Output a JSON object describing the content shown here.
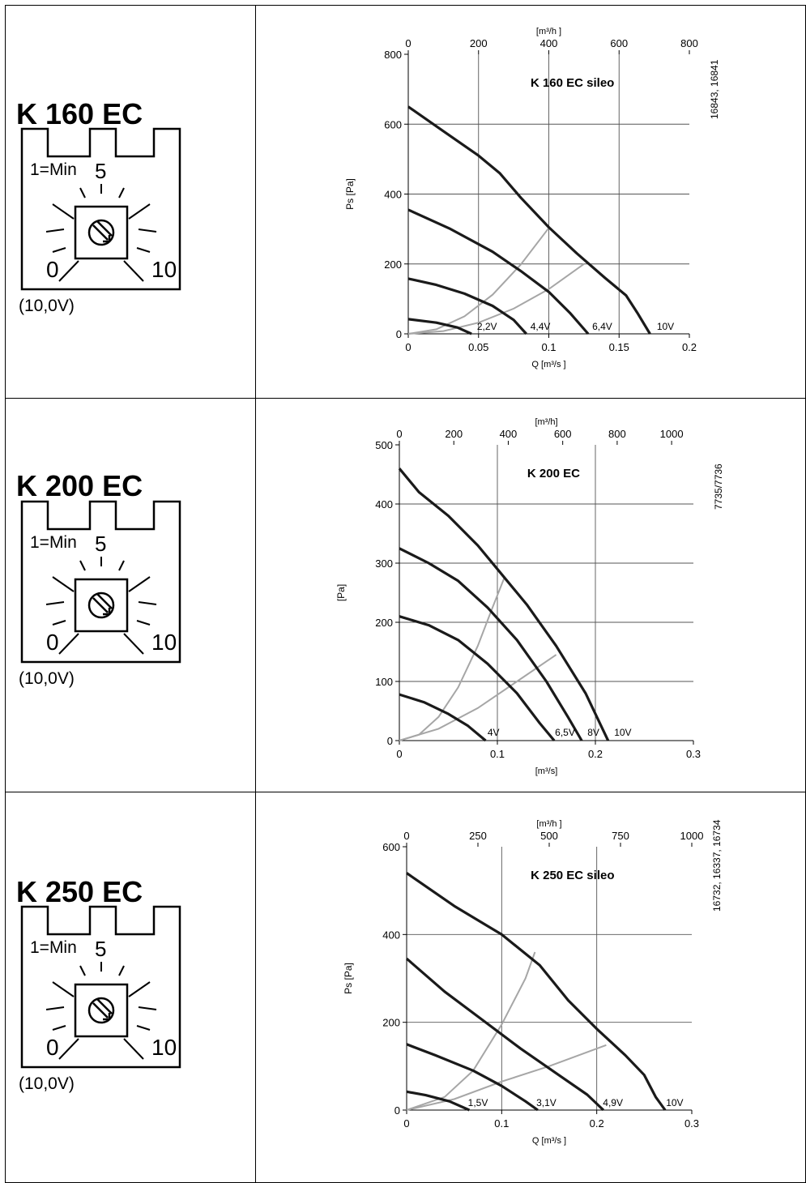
{
  "panels": [
    {
      "model": "K 160 EC",
      "dial": {
        "min_label": "1=Min",
        "mid": "5",
        "low": "0",
        "high": "10",
        "voltage": "(10,0V)"
      },
      "chart_data": {
        "type": "line",
        "title": "K 160 EC sileo",
        "side_label": "16843, 16841",
        "xlabel": "Q [m³/s  ]",
        "ylabel": "Ps [Pa]",
        "x2label": "[m³/h  ]",
        "xlim": [
          0,
          0.2
        ],
        "ylim": [
          0,
          800
        ],
        "x2lim": [
          0,
          800
        ],
        "xticks": [
          "0",
          "0.05",
          "0.1",
          "0.15",
          "0.2"
        ],
        "yticks": [
          "0",
          "200",
          "400",
          "600",
          "800"
        ],
        "x2ticks": [
          "0",
          "200",
          "400",
          "600",
          "800"
        ],
        "x_gridlines": [
          0.05,
          0.1,
          0.15
        ],
        "grid": true,
        "series": [
          {
            "name": "10V",
            "points": [
              [
                0,
                650
              ],
              [
                0.025,
                580
              ],
              [
                0.05,
                510
              ],
              [
                0.065,
                460
              ],
              [
                0.08,
                390
              ],
              [
                0.1,
                305
              ],
              [
                0.12,
                230
              ],
              [
                0.14,
                160
              ],
              [
                0.155,
                110
              ],
              [
                0.163,
                60
              ],
              [
                0.172,
                0
              ]
            ],
            "label_at": [
              0.183,
              12
            ]
          },
          {
            "name": "6,4V",
            "points": [
              [
                0,
                355
              ],
              [
                0.03,
                300
              ],
              [
                0.06,
                235
              ],
              [
                0.08,
                180
              ],
              [
                0.1,
                120
              ],
              [
                0.115,
                60
              ],
              [
                0.128,
                0
              ]
            ],
            "label_at": [
              0.138,
              12
            ]
          },
          {
            "name": "4,4V",
            "points": [
              [
                0,
                158
              ],
              [
                0.02,
                140
              ],
              [
                0.04,
                115
              ],
              [
                0.06,
                80
              ],
              [
                0.075,
                40
              ],
              [
                0.084,
                0
              ]
            ],
            "label_at": [
              0.094,
              12
            ]
          },
          {
            "name": "2,2V",
            "points": [
              [
                0,
                42
              ],
              [
                0.02,
                32
              ],
              [
                0.035,
                18
              ],
              [
                0.045,
                0
              ]
            ],
            "label_at": [
              0.056,
              12
            ]
          }
        ],
        "system_curves": [
          [
            [
              0,
              0
            ],
            [
              0.02,
              13
            ],
            [
              0.04,
              50
            ],
            [
              0.06,
              112
            ],
            [
              0.08,
              198
            ],
            [
              0.1,
              303
            ]
          ],
          [
            [
              0,
              0
            ],
            [
              0.025,
              8
            ],
            [
              0.05,
              32
            ],
            [
              0.075,
              72
            ],
            [
              0.1,
              128
            ],
            [
              0.125,
              200
            ]
          ]
        ]
      }
    },
    {
      "model": "K 200 EC",
      "dial": {
        "min_label": "1=Min",
        "mid": "5",
        "low": "0",
        "high": "10",
        "voltage": "(10,0V)"
      },
      "chart_data": {
        "type": "line",
        "title": "K 200 EC",
        "side_label": "7735/7736",
        "xlabel": "[m³/s]",
        "ylabel": "[Pa]",
        "x2label": "[m³/h]",
        "xlim": [
          0,
          0.3
        ],
        "ylim": [
          0,
          500
        ],
        "x2lim": [
          0,
          1080
        ],
        "xticks": [
          "0",
          "0.1",
          "0.2",
          "0.3"
        ],
        "yticks": [
          "0",
          "100",
          "200",
          "300",
          "400",
          "500"
        ],
        "x2ticks": [
          "0",
          "200",
          "400",
          "600",
          "800",
          "1000"
        ],
        "x_gridlines": [
          0.1,
          0.2
        ],
        "grid": true,
        "series": [
          {
            "name": "10V",
            "points": [
              [
                0,
                460
              ],
              [
                0.02,
                420
              ],
              [
                0.05,
                380
              ],
              [
                0.08,
                330
              ],
              [
                0.1,
                290
              ],
              [
                0.13,
                230
              ],
              [
                0.16,
                160
              ],
              [
                0.19,
                80
              ],
              [
                0.213,
                0
              ]
            ],
            "label_at": [
              0.228,
              8
            ]
          },
          {
            "name": "8V",
            "points": [
              [
                0,
                325
              ],
              [
                0.03,
                300
              ],
              [
                0.06,
                270
              ],
              [
                0.09,
                225
              ],
              [
                0.12,
                170
              ],
              [
                0.15,
                100
              ],
              [
                0.172,
                40
              ],
              [
                0.186,
                0
              ]
            ],
            "label_at": [
              0.198,
              8
            ]
          },
          {
            "name": "6,5V",
            "points": [
              [
                0,
                210
              ],
              [
                0.03,
                195
              ],
              [
                0.06,
                170
              ],
              [
                0.09,
                130
              ],
              [
                0.12,
                80
              ],
              [
                0.143,
                30
              ],
              [
                0.158,
                0
              ]
            ],
            "label_at": [
              0.169,
              8
            ]
          },
          {
            "name": "4V",
            "points": [
              [
                0,
                78
              ],
              [
                0.025,
                65
              ],
              [
                0.05,
                45
              ],
              [
                0.07,
                25
              ],
              [
                0.088,
                0
              ]
            ],
            "label_at": [
              0.096,
              8
            ]
          }
        ],
        "system_curves": [
          [
            [
              0,
              0
            ],
            [
              0.02,
              10
            ],
            [
              0.04,
              40
            ],
            [
              0.06,
              90
            ],
            [
              0.08,
              160
            ],
            [
              0.095,
              225
            ],
            [
              0.107,
              275
            ]
          ],
          [
            [
              0,
              0
            ],
            [
              0.04,
              20
            ],
            [
              0.08,
              55
            ],
            [
              0.12,
              100
            ],
            [
              0.16,
              145
            ]
          ]
        ]
      }
    },
    {
      "model": "K 250 EC",
      "dial": {
        "min_label": "1=Min",
        "mid": "5",
        "low": "0",
        "high": "10",
        "voltage": "(10,0V)"
      },
      "chart_data": {
        "type": "line",
        "title": "K 250 EC sileo",
        "side_label": "16732, 16337, 16734",
        "xlabel": "Q [m³/s  ]",
        "ylabel": "Ps [Pa]",
        "x2label": "[m³/h  ]",
        "xlim": [
          0,
          0.3
        ],
        "ylim": [
          0,
          600
        ],
        "x2lim": [
          0,
          1000
        ],
        "xticks": [
          "0",
          "0.1",
          "0.2",
          "0.3"
        ],
        "yticks": [
          "0",
          "200",
          "400",
          "600"
        ],
        "x2ticks": [
          "0",
          "250",
          "500",
          "750",
          "1000"
        ],
        "x_gridlines": [
          0.1,
          0.2
        ],
        "grid": true,
        "series": [
          {
            "name": "10V",
            "points": [
              [
                0,
                540
              ],
              [
                0.05,
                465
              ],
              [
                0.1,
                400
              ],
              [
                0.14,
                330
              ],
              [
                0.17,
                250
              ],
              [
                0.2,
                185
              ],
              [
                0.23,
                125
              ],
              [
                0.25,
                80
              ],
              [
                0.262,
                30
              ],
              [
                0.272,
                0
              ]
            ],
            "label_at": [
              0.282,
              9
            ]
          },
          {
            "name": "4,9V",
            "points": [
              [
                0,
                345
              ],
              [
                0.04,
                270
              ],
              [
                0.08,
                205
              ],
              [
                0.12,
                140
              ],
              [
                0.16,
                80
              ],
              [
                0.19,
                35
              ],
              [
                0.207,
                0
              ]
            ],
            "label_at": [
              0.217,
              9
            ]
          },
          {
            "name": "3,1V",
            "points": [
              [
                0,
                150
              ],
              [
                0.03,
                125
              ],
              [
                0.07,
                90
              ],
              [
                0.1,
                55
              ],
              [
                0.125,
                20
              ],
              [
                0.138,
                0
              ]
            ],
            "label_at": [
              0.147,
              9
            ]
          },
          {
            "name": "1,5V",
            "points": [
              [
                0,
                42
              ],
              [
                0.02,
                34
              ],
              [
                0.045,
                20
              ],
              [
                0.066,
                0
              ]
            ],
            "label_at": [
              0.075,
              9
            ]
          }
        ],
        "system_curves": [
          [
            [
              0,
              0
            ],
            [
              0.04,
              30
            ],
            [
              0.07,
              90
            ],
            [
              0.1,
              195
            ],
            [
              0.125,
              300
            ],
            [
              0.135,
              360
            ]
          ],
          [
            [
              0,
              0
            ],
            [
              0.05,
              25
            ],
            [
              0.1,
              65
            ],
            [
              0.15,
              100
            ],
            [
              0.21,
              148
            ]
          ]
        ]
      }
    }
  ]
}
